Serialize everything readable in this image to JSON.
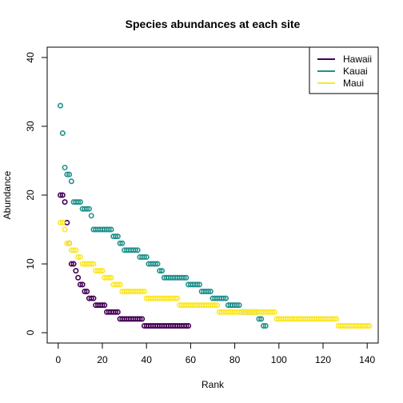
{
  "chart_data": {
    "type": "scatter",
    "title": "Species abundances at each site",
    "xlabel": "Rank",
    "ylabel": "Abundance",
    "xlim": [
      -5,
      145
    ],
    "ylim": [
      -1.5,
      41.5
    ],
    "xticks": [
      0,
      20,
      40,
      60,
      80,
      100,
      120,
      140
    ],
    "yticks": [
      0,
      10,
      20,
      30,
      40
    ],
    "grid": false,
    "legend_position": "top-right",
    "series": [
      {
        "name": "Hawaii",
        "color": "#440154",
        "runs": [
          [
            20,
            2
          ],
          [
            19,
            1
          ],
          [
            16,
            1
          ],
          [
            13,
            1
          ],
          [
            10,
            2
          ],
          [
            9,
            1
          ],
          [
            8,
            1
          ],
          [
            7,
            2
          ],
          [
            6,
            2
          ],
          [
            5,
            3
          ],
          [
            4,
            5
          ],
          [
            3,
            6
          ],
          [
            2,
            11
          ],
          [
            1,
            21
          ]
        ]
      },
      {
        "name": "Kauai",
        "color": "#21908C",
        "runs": [
          [
            33,
            1
          ],
          [
            29,
            1
          ],
          [
            24,
            1
          ],
          [
            23,
            2
          ],
          [
            22,
            1
          ],
          [
            19,
            4
          ],
          [
            18,
            4
          ],
          [
            17,
            1
          ],
          [
            15,
            9
          ],
          [
            14,
            3
          ],
          [
            13,
            2
          ],
          [
            12,
            7
          ],
          [
            11,
            4
          ],
          [
            10,
            5
          ],
          [
            9,
            2
          ],
          [
            8,
            11
          ],
          [
            7,
            6
          ],
          [
            6,
            5
          ],
          [
            5,
            7
          ],
          [
            4,
            6
          ],
          [
            3,
            8
          ],
          [
            2,
            2
          ],
          [
            1,
            2
          ]
        ]
      },
      {
        "name": "Maui",
        "color": "#FDE725",
        "runs": [
          [
            16,
            2
          ],
          [
            15,
            1
          ],
          [
            13,
            2
          ],
          [
            12,
            3
          ],
          [
            11,
            2
          ],
          [
            10,
            6
          ],
          [
            9,
            4
          ],
          [
            8,
            4
          ],
          [
            7,
            4
          ],
          [
            6,
            11
          ],
          [
            5,
            15
          ],
          [
            4,
            18
          ],
          [
            3,
            26
          ],
          [
            2,
            28
          ],
          [
            1,
            15
          ]
        ]
      }
    ]
  }
}
